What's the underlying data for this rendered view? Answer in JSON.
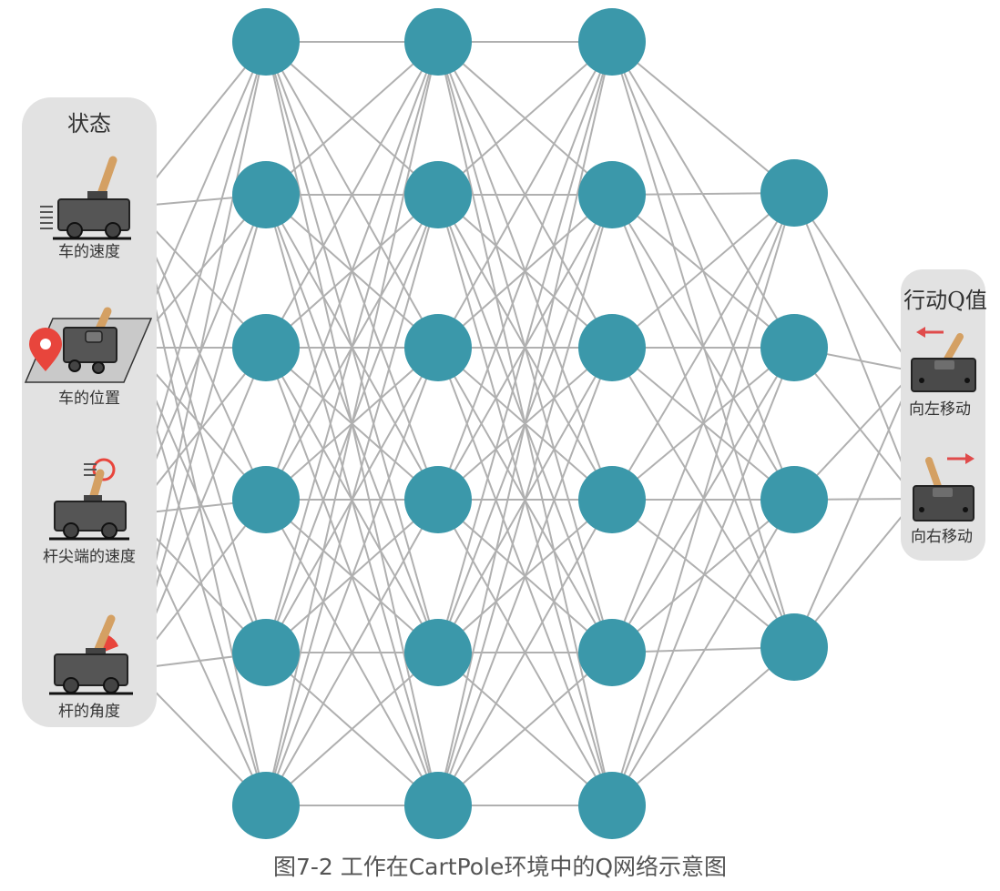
{
  "state_panel": {
    "title": "状态",
    "items": [
      {
        "label": "车的速度",
        "icon": "cart-speed-icon"
      },
      {
        "label": "车的位置",
        "icon": "cart-position-icon"
      },
      {
        "label": "杆尖端的速度",
        "icon": "pole-tip-speed-icon"
      },
      {
        "label": "杆的角度",
        "icon": "pole-angle-icon"
      }
    ]
  },
  "action_panel": {
    "title": "行动Q值",
    "items": [
      {
        "label": "向左移动",
        "icon": "move-left-icon"
      },
      {
        "label": "向右移动",
        "icon": "move-right-icon"
      }
    ]
  },
  "network": {
    "layer_sizes": [
      6,
      6,
      6,
      4
    ],
    "output_count": 2
  },
  "caption": "图7-2 工作在CartPole环境中的Q网络示意图",
  "colors": {
    "node": "#3b98aa",
    "edge": "#b0b0b0",
    "panel": "#e2e2e2",
    "pin": "#e8453c",
    "arrow": "#e04b4b",
    "pole": "#d4a063",
    "cart": "#555555"
  }
}
